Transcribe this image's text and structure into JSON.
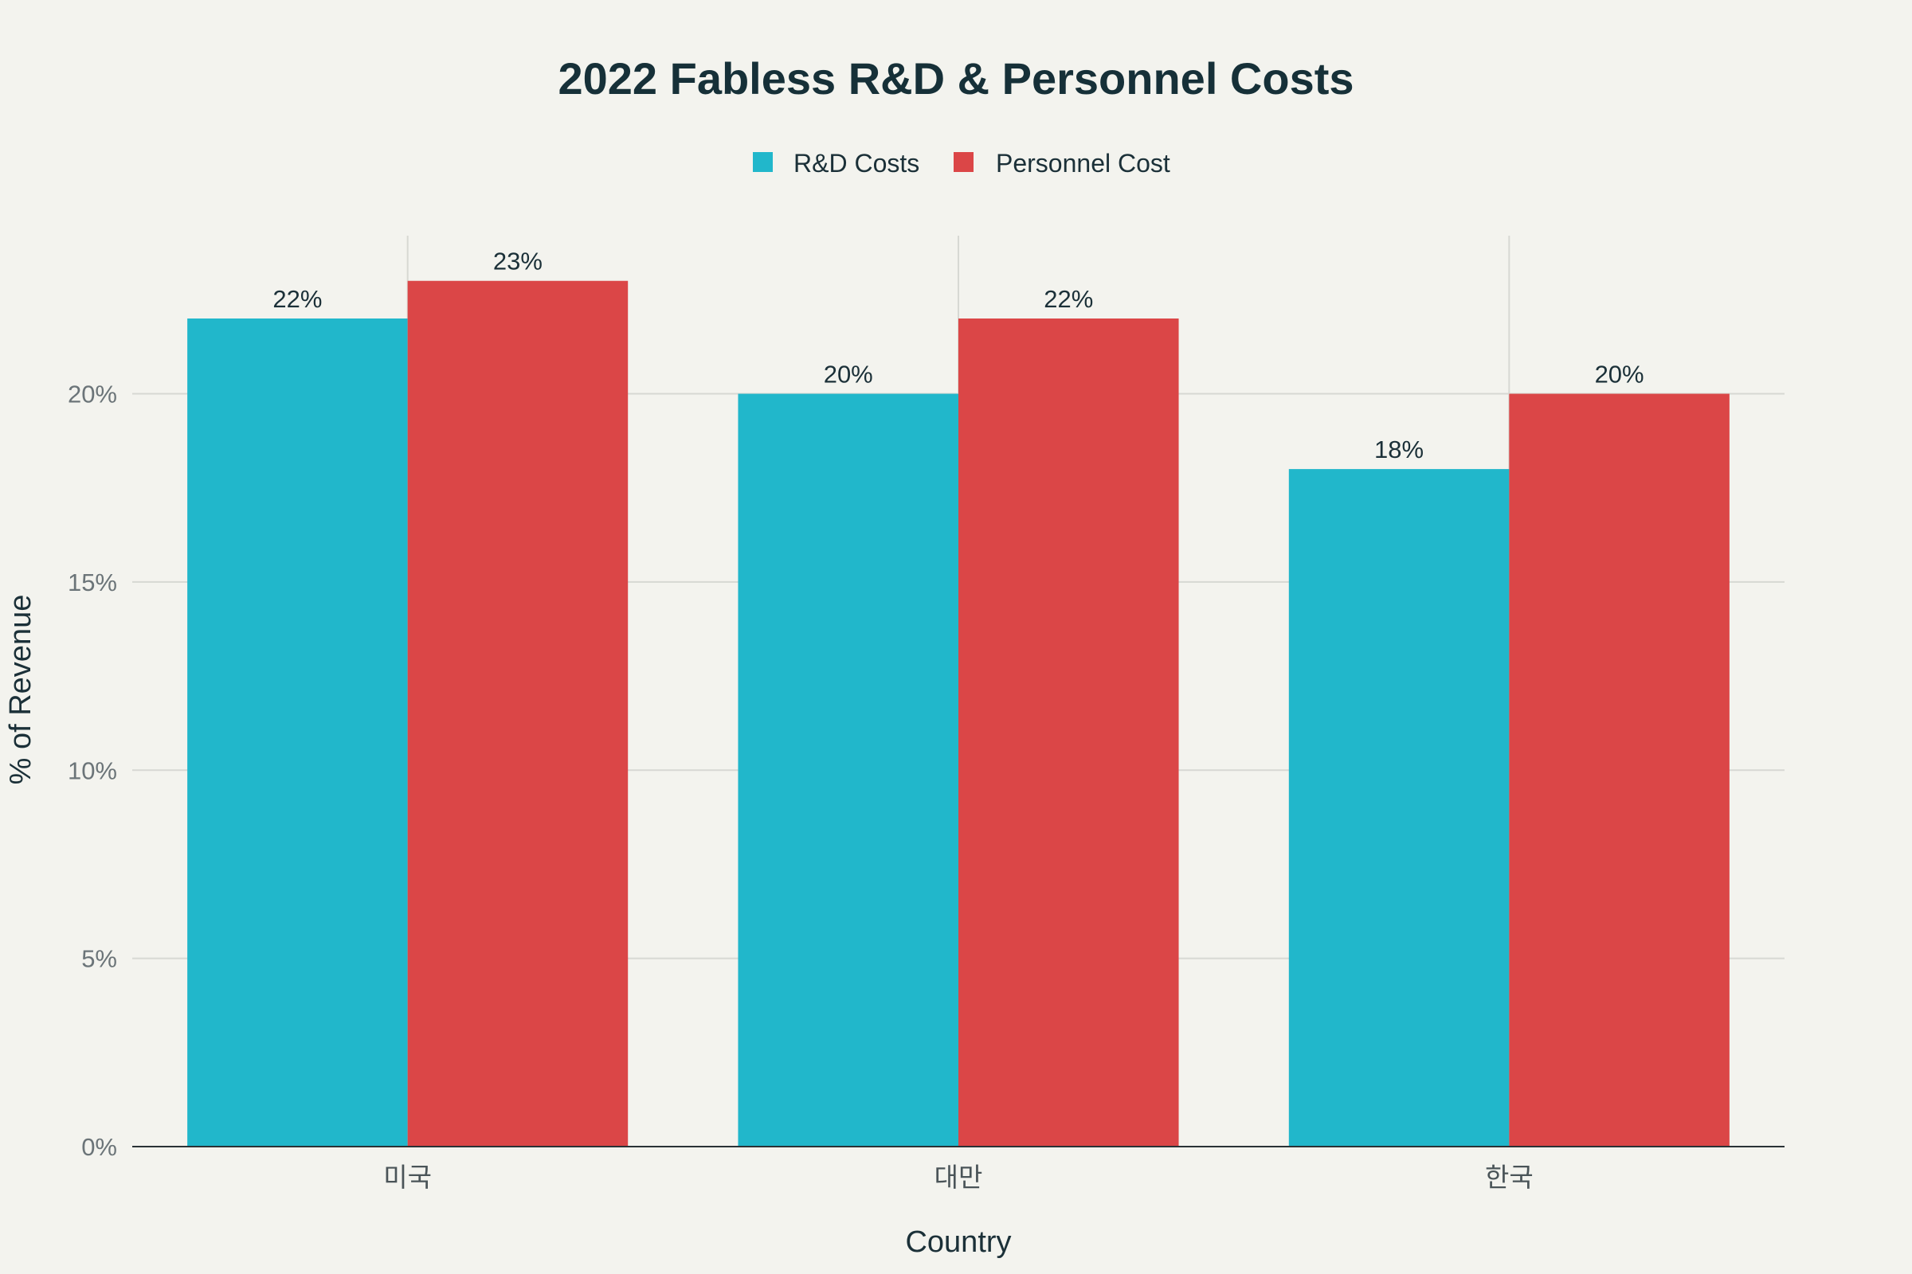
{
  "chart_data": {
    "type": "bar",
    "title": "2022 Fabless R&D & Personnel Costs",
    "xlabel": "Country",
    "ylabel": "% of Revenue",
    "categories": [
      "미국",
      "대만",
      "한국"
    ],
    "series": [
      {
        "name": "R&D Costs",
        "values": [
          22,
          20,
          18
        ],
        "labels": [
          "22%",
          "20%",
          "18%"
        ],
        "color": "#21b7cb"
      },
      {
        "name": "Personnel Cost",
        "values": [
          23,
          22,
          20
        ],
        "labels": [
          "23%",
          "22%",
          "20%"
        ],
        "color": "#db4647"
      }
    ],
    "ylim": [
      0,
      24.2
    ],
    "yticks": [
      {
        "value": 0,
        "label": "0%"
      },
      {
        "value": 5,
        "label": "5%"
      },
      {
        "value": 10,
        "label": "10%"
      },
      {
        "value": 15,
        "label": "15%"
      },
      {
        "value": 20,
        "label": "20%"
      }
    ],
    "grid": true,
    "legend_position": "top-center"
  }
}
